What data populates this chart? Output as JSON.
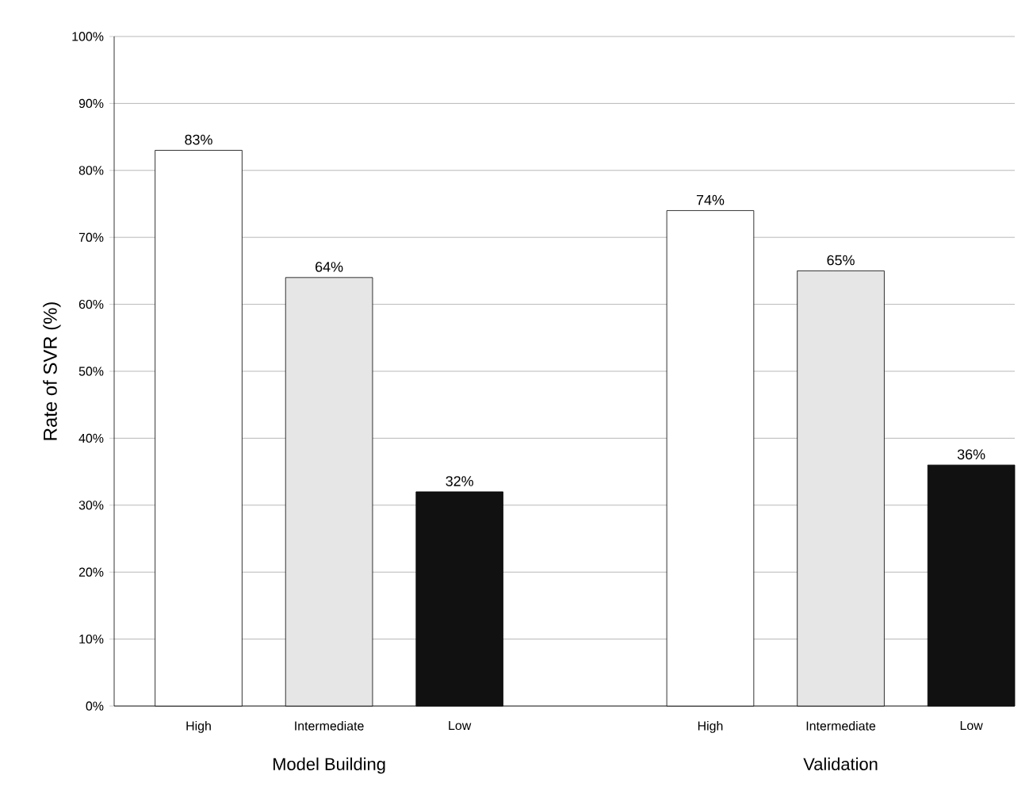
{
  "chart_data": {
    "type": "bar",
    "ylabel": "Rate of SVR (%)",
    "categories": [
      "Model Building",
      "Validation"
    ],
    "series": [
      {
        "name": "High",
        "color": "#ffffff",
        "values": [
          83,
          74
        ],
        "value_labels": [
          "83%",
          "74%"
        ]
      },
      {
        "name": "Intermediate",
        "color": "#e6e6e6",
        "values": [
          64,
          65
        ],
        "value_labels": [
          "64%",
          "65%"
        ]
      },
      {
        "name": "Low",
        "color": "#111111",
        "values": [
          32,
          36
        ],
        "value_labels": [
          "32%",
          "36%"
        ]
      }
    ],
    "ylim": [
      0,
      100
    ],
    "yticks": [
      {
        "value": 0,
        "label": "0%"
      },
      {
        "value": 10,
        "label": "10%"
      },
      {
        "value": 20,
        "label": "20%"
      },
      {
        "value": 30,
        "label": "30%"
      },
      {
        "value": 40,
        "label": "40%"
      },
      {
        "value": 50,
        "label": "50%"
      },
      {
        "value": 60,
        "label": "60%"
      },
      {
        "value": 70,
        "label": "70%"
      },
      {
        "value": 80,
        "label": "80%"
      },
      {
        "value": 90,
        "label": "90%"
      },
      {
        "value": 100,
        "label": "100%"
      }
    ],
    "grid": "y",
    "legend": false
  }
}
